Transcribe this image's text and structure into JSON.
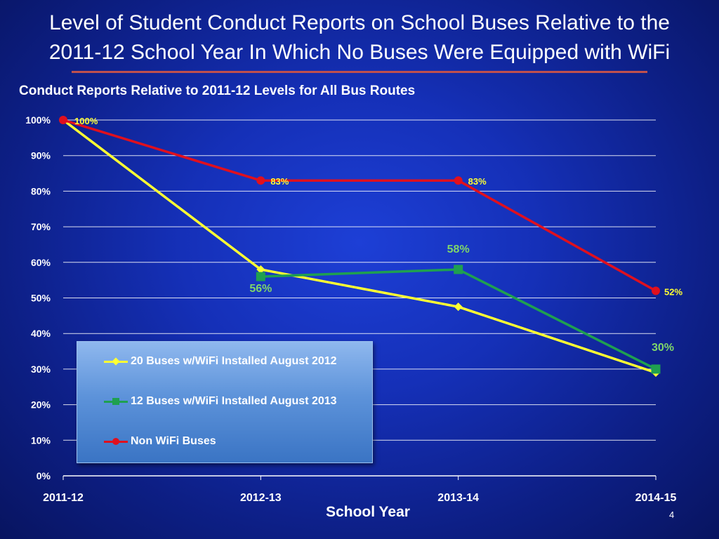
{
  "slide": {
    "title_line1": "Level of Student Conduct Reports on School Buses Relative to the",
    "title_line2": "2011-12 School Year In Which No Buses Were Equipped with WiFi",
    "page_number": "4"
  },
  "chart_data": {
    "type": "line",
    "title": "Conduct Reports Relative to 2011-12 Levels for All Bus Routes",
    "xlabel": "School Year",
    "ylabel": "",
    "categories": [
      "2011-12",
      "2012-13",
      "2013-14",
      "2014-15"
    ],
    "ylim": [
      0,
      100
    ],
    "yticks": [
      "0%",
      "10%",
      "20%",
      "30%",
      "40%",
      "50%",
      "60%",
      "70%",
      "80%",
      "90%",
      "100%"
    ],
    "grid": true,
    "legend_position": "bottom-left",
    "series": [
      {
        "name": "20 Buses w/WiFi Installed August 2012",
        "values": [
          100,
          58,
          47.5,
          29
        ],
        "color": "#ffff33",
        "marker": "diamond",
        "labels": [
          "",
          "",
          "",
          ""
        ]
      },
      {
        "name": "12 Buses w/WiFi Installed August 2013",
        "values": [
          null,
          56,
          58,
          30
        ],
        "color": "#1fa050",
        "marker": "square",
        "labels": [
          "",
          "56%",
          "58%",
          "30%"
        ],
        "label_color": "#7fd66a"
      },
      {
        "name": "Non WiFi Buses",
        "values": [
          100,
          83,
          83,
          52
        ],
        "color": "#e0101e",
        "marker": "circle",
        "labels": [
          "100%",
          "83%",
          "83%",
          "52%"
        ],
        "label_color": "#ffff33"
      }
    ]
  }
}
